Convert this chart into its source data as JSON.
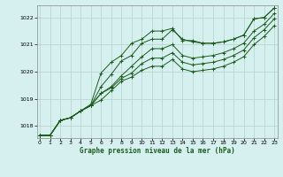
{
  "title": "Graphe pression niveau de la mer (hPa)",
  "background_color": "#d6f0f0",
  "grid_color": "#b8d8d0",
  "line_color": "#1a5c1a",
  "x_ticks": [
    0,
    1,
    2,
    3,
    4,
    5,
    6,
    7,
    8,
    9,
    10,
    11,
    12,
    13,
    14,
    15,
    16,
    17,
    18,
    19,
    20,
    21,
    22,
    23
  ],
  "y_ticks": [
    1018,
    1019,
    1020,
    1021,
    1022
  ],
  "ylim": [
    1017.55,
    1022.45
  ],
  "xlim": [
    -0.3,
    23.3
  ],
  "series": [
    [
      1017.65,
      1017.65,
      1018.2,
      1018.3,
      1018.55,
      1018.75,
      1019.45,
      1019.9,
      1020.4,
      1020.6,
      1021.05,
      1021.2,
      1021.2,
      1021.55,
      1021.2,
      1021.1,
      1021.05,
      1021.05,
      1021.1,
      1021.2,
      1021.35,
      1021.95,
      1022.0,
      1022.35
    ],
    [
      1017.65,
      1017.65,
      1018.2,
      1018.3,
      1018.55,
      1018.75,
      1019.2,
      1019.45,
      1019.85,
      1020.2,
      1020.55,
      1020.85,
      1020.85,
      1021.0,
      1020.6,
      1020.5,
      1020.55,
      1020.6,
      1020.7,
      1020.85,
      1021.05,
      1021.5,
      1021.75,
      1022.15
    ],
    [
      1017.65,
      1017.65,
      1018.2,
      1018.3,
      1018.55,
      1018.75,
      1019.2,
      1019.4,
      1019.75,
      1019.95,
      1020.3,
      1020.5,
      1020.5,
      1020.7,
      1020.35,
      1020.25,
      1020.3,
      1020.35,
      1020.45,
      1020.6,
      1020.8,
      1021.25,
      1021.55,
      1021.95
    ],
    [
      1017.65,
      1017.65,
      1018.2,
      1018.3,
      1018.55,
      1018.75,
      1018.95,
      1019.3,
      1019.65,
      1019.8,
      1020.05,
      1020.2,
      1020.2,
      1020.45,
      1020.1,
      1020.0,
      1020.05,
      1020.1,
      1020.2,
      1020.35,
      1020.55,
      1021.0,
      1021.3,
      1021.7
    ]
  ],
  "series_peaked": [
    [
      1017.65,
      1017.65,
      1018.2,
      1018.3,
      1018.55,
      1018.8,
      1019.95,
      1020.35,
      1020.6,
      1021.05,
      1021.2,
      1021.5,
      1021.5,
      1021.6,
      1021.15,
      1021.15,
      1021.05,
      1021.05,
      1021.1,
      1021.2,
      1021.35,
      1021.95,
      1022.0,
      1022.35
    ]
  ]
}
